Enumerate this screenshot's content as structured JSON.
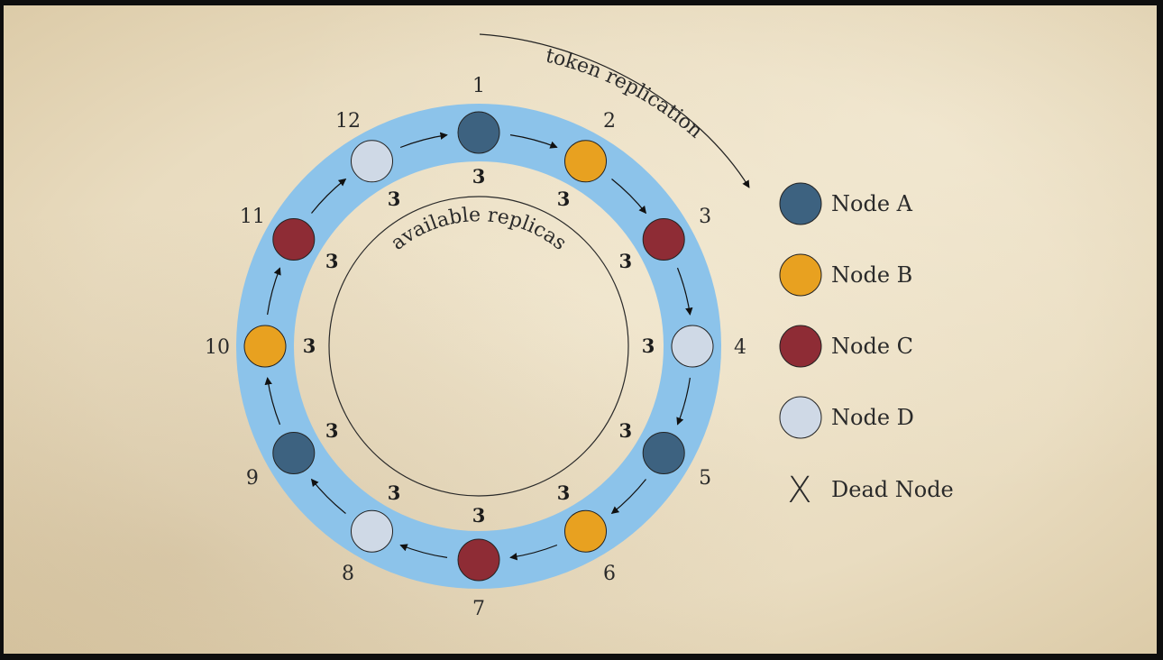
{
  "colors": {
    "node_a": "#3d6280",
    "node_b": "#e8a120",
    "node_c": "#8e2c35",
    "node_d": "#cfd9e6",
    "dead": "#e8a120",
    "ring": "#8cc3ea"
  },
  "labels": {
    "token_replication": "token replication",
    "available_replicas": "available replicas"
  },
  "ring": {
    "positions": [
      "1",
      "2",
      "3",
      "4",
      "5",
      "6",
      "7",
      "8",
      "9",
      "10",
      "11",
      "12"
    ],
    "nodes": [
      "A",
      "B",
      "C",
      "D",
      "A",
      "B",
      "C",
      "D",
      "A",
      "B",
      "C",
      "D"
    ],
    "replicas": [
      "3",
      "3",
      "3",
      "3",
      "3",
      "3",
      "3",
      "3",
      "3",
      "3",
      "3",
      "3"
    ]
  },
  "legend": [
    {
      "key": "A",
      "label": "Node A",
      "icon": "circle"
    },
    {
      "key": "B",
      "label": "Node B",
      "icon": "circle"
    },
    {
      "key": "C",
      "label": "Node C",
      "icon": "circle"
    },
    {
      "key": "D",
      "label": "Node D",
      "icon": "circle"
    },
    {
      "key": "dead",
      "label": "Dead Node",
      "icon": "x-mark",
      "marker": "X"
    }
  ]
}
